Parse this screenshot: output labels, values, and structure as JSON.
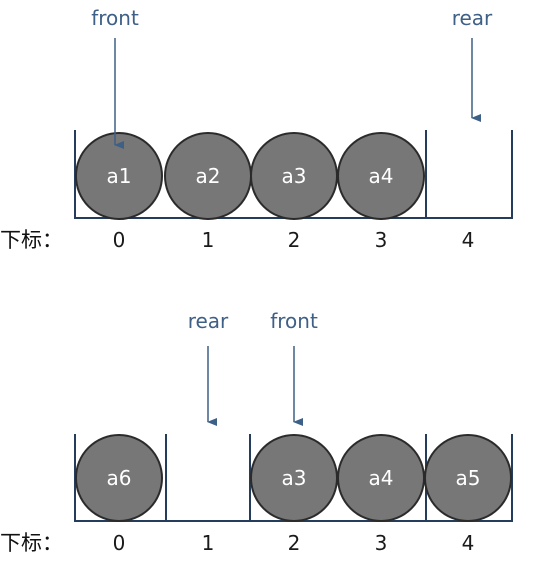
{
  "queues": [
    {
      "caption": "下标：",
      "cells": [
        {
          "index": "0",
          "value": "a1"
        },
        {
          "index": "1",
          "value": "a2"
        },
        {
          "index": "2",
          "value": "a3"
        },
        {
          "index": "3",
          "value": "a4"
        },
        {
          "index": "4",
          "value": ""
        }
      ],
      "pointers": [
        {
          "label": "front",
          "cell": 0
        },
        {
          "label": "rear",
          "cell": 4
        }
      ]
    },
    {
      "caption": "下标：",
      "cells": [
        {
          "index": "0",
          "value": "a6"
        },
        {
          "index": "1",
          "value": ""
        },
        {
          "index": "2",
          "value": "a3"
        },
        {
          "index": "3",
          "value": "a4"
        },
        {
          "index": "4",
          "value": "a5"
        }
      ],
      "pointers": [
        {
          "label": "rear",
          "cell": 1
        },
        {
          "label": "front",
          "cell": 2
        }
      ]
    }
  ],
  "colors": {
    "circle_fill": "#777777",
    "circle_stroke": "#2b2b2b",
    "box_stroke": "#253d5c",
    "pointer": "#3e5f86"
  }
}
